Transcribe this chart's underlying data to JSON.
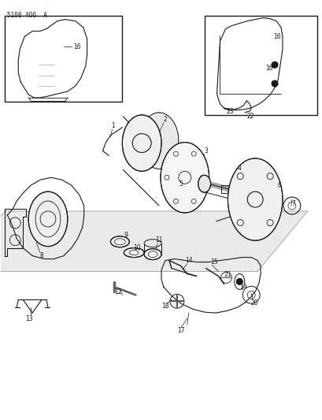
{
  "title": "5108 400  A",
  "bg_color": "#ffffff",
  "line_color": "#1a1a1a",
  "fig_width": 4.1,
  "fig_height": 5.33,
  "dpi": 100
}
